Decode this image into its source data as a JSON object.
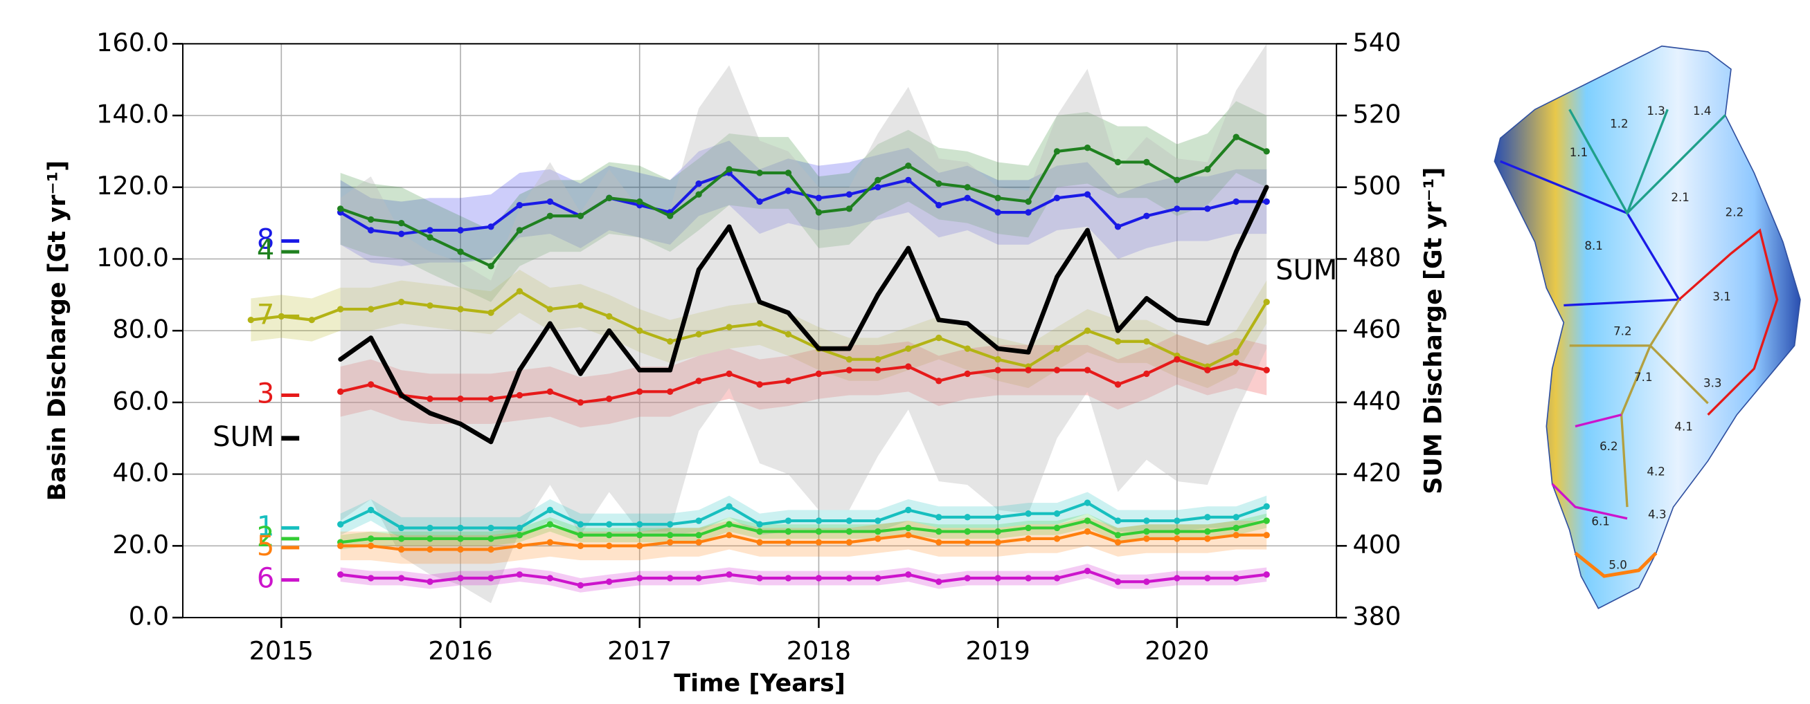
{
  "chart_data": {
    "type": "line",
    "x_label": "Time [Years]",
    "y_label": "Basin Discharge [Gt yr⁻¹]",
    "y2_label": "SUM Discharge [Gt yr⁻¹]",
    "annotation": "SUM",
    "xlim": [
      2014.45,
      2020.89
    ],
    "xticks": [
      2015,
      2016,
      2017,
      2018,
      2019,
      2020
    ],
    "ylim": [
      0,
      160
    ],
    "yticks": [
      {
        "value": 0,
        "label": "0.0"
      },
      {
        "value": 20,
        "label": "20.0"
      },
      {
        "value": 40,
        "label": "40.0"
      },
      {
        "value": 60,
        "label": "60.0"
      },
      {
        "value": 80,
        "label": "80.0"
      },
      {
        "value": 100,
        "label": "100.0"
      },
      {
        "value": 120,
        "label": "120.0"
      },
      {
        "value": 140,
        "label": "140.0"
      },
      {
        "value": 160,
        "label": "160.0"
      }
    ],
    "y2lim": [
      380,
      540
    ],
    "y2ticks": [
      380,
      400,
      420,
      440,
      460,
      480,
      500,
      520,
      540
    ],
    "grid": true,
    "x": [
      2014.83,
      2015.0,
      2015.17,
      2015.33,
      2015.5,
      2015.67,
      2015.83,
      2016.0,
      2016.17,
      2016.33,
      2016.5,
      2016.67,
      2016.83,
      2017.0,
      2017.17,
      2017.33,
      2017.5,
      2017.67,
      2017.83,
      2018.0,
      2018.17,
      2018.33,
      2018.5,
      2018.67,
      2018.83,
      2019.0,
      2019.17,
      2019.33,
      2019.5,
      2019.67,
      2019.83,
      2020.0,
      2020.17,
      2020.33,
      2020.5
    ],
    "series": [
      {
        "name": "8",
        "color": "#1a1ae6",
        "stub_value": 105,
        "uncertainty": 9,
        "values": [
          null,
          null,
          null,
          113,
          108,
          107,
          108,
          108,
          109,
          115,
          116,
          112,
          117,
          115,
          113,
          121,
          124,
          116,
          119,
          117,
          118,
          120,
          122,
          115,
          117,
          113,
          113,
          117,
          118,
          109,
          112,
          114,
          114,
          116,
          116
        ]
      },
      {
        "name": "4",
        "color": "#1f801f",
        "stub_value": 102,
        "uncertainty": 10,
        "values": [
          null,
          null,
          null,
          114,
          111,
          110,
          106,
          102,
          98,
          108,
          112,
          112,
          117,
          116,
          112,
          118,
          125,
          124,
          124,
          113,
          114,
          122,
          126,
          121,
          120,
          117,
          116,
          130,
          131,
          127,
          127,
          122,
          125,
          134,
          130
        ]
      },
      {
        "name": "7",
        "color": "#b3b314",
        "stub_value": 84,
        "uncertainty": 6,
        "values": [
          83,
          84,
          83,
          86,
          86,
          88,
          87,
          86,
          85,
          91,
          86,
          87,
          84,
          80,
          77,
          79,
          81,
          82,
          79,
          75,
          72,
          72,
          75,
          78,
          75,
          72,
          70,
          75,
          80,
          77,
          77,
          73,
          70,
          74,
          88
        ]
      },
      {
        "name": "3",
        "color": "#e61a1a",
        "stub_value": 62,
        "uncertainty": 7,
        "values": [
          null,
          null,
          null,
          63,
          65,
          62,
          61,
          61,
          61,
          62,
          63,
          60,
          61,
          63,
          63,
          66,
          68,
          65,
          66,
          68,
          69,
          69,
          70,
          66,
          68,
          69,
          69,
          69,
          69,
          65,
          68,
          72,
          69,
          71,
          69
        ]
      },
      {
        "name": "SUM",
        "color": "#000000",
        "axis": "y2",
        "stub_value": 430,
        "uncertainty": 45,
        "values": [
          null,
          null,
          null,
          452,
          458,
          442,
          437,
          434,
          429,
          449,
          462,
          448,
          460,
          449,
          449,
          477,
          489,
          468,
          465,
          455,
          455,
          470,
          483,
          463,
          462,
          455,
          454,
          475,
          488,
          460,
          469,
          463,
          462,
          482,
          500
        ]
      },
      {
        "name": "1",
        "color": "#17bfbf",
        "stub_value": 25,
        "uncertainty": 3,
        "values": [
          null,
          null,
          null,
          26,
          30,
          25,
          25,
          25,
          25,
          25,
          30,
          26,
          26,
          26,
          26,
          27,
          31,
          26,
          27,
          27,
          27,
          27,
          30,
          28,
          28,
          28,
          29,
          29,
          32,
          27,
          27,
          27,
          28,
          28,
          31
        ]
      },
      {
        "name": "2",
        "color": "#33cc33",
        "stub_value": 22,
        "uncertainty": 2,
        "values": [
          null,
          null,
          null,
          21,
          22,
          22,
          22,
          22,
          22,
          23,
          26,
          23,
          23,
          23,
          23,
          23,
          26,
          24,
          24,
          24,
          24,
          24,
          25,
          24,
          24,
          24,
          25,
          25,
          27,
          23,
          24,
          24,
          24,
          25,
          27
        ]
      },
      {
        "name": "5",
        "color": "#ff7f0e",
        "stub_value": 19.5,
        "uncertainty": 4,
        "values": [
          null,
          null,
          null,
          20,
          20,
          19,
          19,
          19,
          19,
          20,
          21,
          20,
          20,
          20,
          21,
          21,
          23,
          21,
          21,
          21,
          21,
          22,
          23,
          21,
          21,
          21,
          22,
          22,
          24,
          21,
          22,
          22,
          22,
          23,
          23
        ]
      },
      {
        "name": "6",
        "color": "#cc14cc",
        "stub_value": 10.5,
        "uncertainty": 2,
        "values": [
          null,
          null,
          null,
          12,
          11,
          11,
          10,
          11,
          11,
          12,
          11,
          9,
          10,
          11,
          11,
          11,
          12,
          11,
          11,
          11,
          11,
          11,
          12,
          10,
          11,
          11,
          11,
          11,
          13,
          10,
          10,
          11,
          11,
          11,
          12
        ]
      }
    ]
  },
  "map": {
    "labels": [
      "1.1",
      "1.2",
      "1.3",
      "1.4",
      "2.1",
      "2.2",
      "8.1",
      "3.1",
      "7.2",
      "7.1",
      "3.3",
      "4.1",
      "6.2",
      "4.2",
      "4.3",
      "6.1",
      "5.0"
    ]
  }
}
